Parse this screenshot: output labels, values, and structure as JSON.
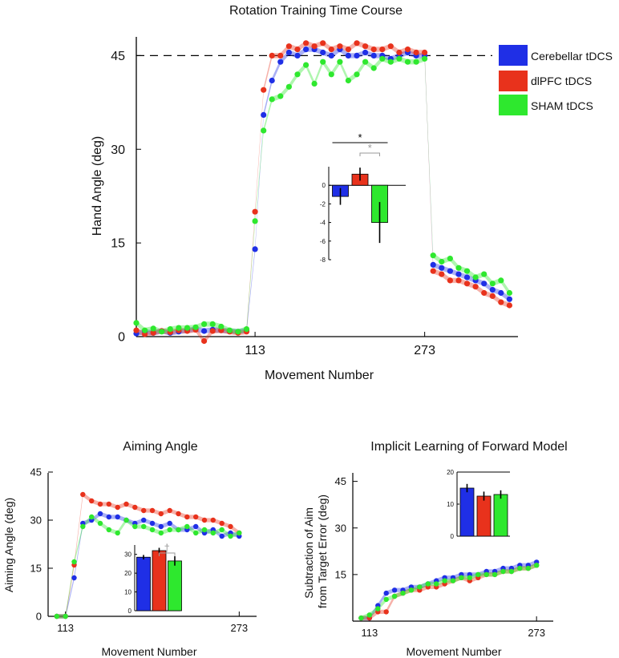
{
  "colors": {
    "cerebellar": "#1f2fe6",
    "dlpfc": "#e8321c",
    "sham": "#2ee82e",
    "axis": "#000000",
    "sig_black": "#000000",
    "sig_gray": "#9a9a9a"
  },
  "chart_data": [
    {
      "id": "main",
      "type": "scatter",
      "title": "Rotation Training Time Course",
      "xlabel": "Movement Number",
      "ylabel": "Hand Angle (deg)",
      "xticks": [
        113,
        273
      ],
      "yticks": [
        0,
        15,
        30,
        45
      ],
      "ytick_labels": [
        "0",
        "15",
        "30",
        "45"
      ],
      "xlim": [
        1,
        361
      ],
      "ylim": [
        0,
        48
      ],
      "reference_line": 45,
      "legend": [
        "Cerebellar tDCS",
        "dlPFC tDCS",
        "SHAM tDCS"
      ],
      "series": [
        {
          "name": "Cerebellar tDCS",
          "key": "cerebellar",
          "x": [
            1,
            9,
            17,
            25,
            33,
            41,
            49,
            57,
            65,
            73,
            81,
            89,
            97,
            105,
            113,
            121,
            129,
            137,
            145,
            153,
            161,
            169,
            177,
            185,
            193,
            201,
            209,
            217,
            225,
            233,
            241,
            249,
            257,
            265,
            273,
            281,
            289,
            297,
            305,
            313,
            321,
            329,
            337,
            345,
            353
          ],
          "y": [
            0.5,
            0.8,
            0.6,
            0.9,
            0.6,
            0.8,
            1.0,
            1.2,
            0.9,
            1.1,
            1.0,
            0.9,
            0.8,
            1.0,
            14.0,
            35.5,
            41.0,
            44.0,
            45.5,
            45.0,
            46.0,
            46.0,
            45.5,
            45.0,
            46.0,
            45.0,
            45.0,
            45.5,
            45.0,
            45.0,
            44.5,
            45.0,
            45.5,
            45.0,
            45.0,
            11.5,
            11.0,
            10.5,
            10.0,
            9.5,
            9.0,
            8.5,
            7.5,
            7.0,
            6.0
          ]
        },
        {
          "name": "dlPFC tDCS",
          "key": "dlpfc",
          "x": [
            1,
            9,
            17,
            25,
            33,
            41,
            49,
            57,
            65,
            73,
            81,
            89,
            97,
            105,
            113,
            121,
            129,
            137,
            145,
            153,
            161,
            169,
            177,
            185,
            193,
            201,
            209,
            217,
            225,
            233,
            241,
            249,
            257,
            265,
            273,
            281,
            289,
            297,
            305,
            313,
            321,
            329,
            337,
            345,
            353
          ],
          "y": [
            1.0,
            0.4,
            0.6,
            0.9,
            0.7,
            1.0,
            0.9,
            1.1,
            -0.7,
            0.9,
            1.0,
            0.8,
            0.6,
            0.8,
            20.0,
            39.5,
            45.0,
            45.0,
            46.5,
            46.0,
            47.0,
            46.5,
            47.0,
            46.0,
            46.5,
            46.0,
            47.0,
            46.5,
            46.0,
            46.0,
            46.5,
            45.5,
            46.0,
            45.5,
            45.5,
            10.5,
            10.0,
            9.0,
            9.0,
            8.5,
            8.0,
            7.0,
            6.5,
            5.5,
            5.0
          ]
        },
        {
          "name": "SHAM tDCS",
          "key": "sham",
          "x": [
            1,
            9,
            17,
            25,
            33,
            41,
            49,
            57,
            65,
            73,
            81,
            89,
            97,
            105,
            113,
            121,
            129,
            137,
            145,
            153,
            161,
            169,
            177,
            185,
            193,
            201,
            209,
            217,
            225,
            233,
            241,
            249,
            257,
            265,
            273,
            281,
            289,
            297,
            305,
            313,
            321,
            329,
            337,
            345,
            353
          ],
          "y": [
            2.2,
            1.0,
            1.3,
            0.8,
            1.2,
            1.4,
            1.4,
            1.5,
            2.0,
            2.0,
            1.6,
            1.0,
            0.8,
            1.2,
            18.5,
            33.0,
            38.0,
            38.5,
            40.0,
            42.0,
            43.5,
            40.5,
            44.0,
            42.0,
            44.0,
            41.0,
            42.0,
            44.0,
            43.0,
            44.5,
            44.0,
            44.5,
            44.0,
            44.0,
            44.5,
            13.0,
            12.0,
            12.5,
            11.0,
            10.5,
            9.5,
            10.0,
            8.5,
            9.0,
            7.0
          ]
        }
      ]
    },
    {
      "id": "main_inset",
      "type": "bar",
      "categories": [
        "Cerebellar tDCS",
        "dlPFC tDCS",
        "SHAM tDCS"
      ],
      "keys": [
        "cerebellar",
        "dlpfc",
        "sham"
      ],
      "values": [
        -1.2,
        1.2,
        -4.0
      ],
      "errors": [
        0.9,
        0.7,
        2.2
      ],
      "ylim": [
        -8,
        2
      ],
      "yticks": [
        0,
        -2,
        -4,
        -6,
        -8
      ],
      "ytick_labels": [
        "0",
        "-2",
        "-4",
        "-6",
        "-8"
      ],
      "annotations": [
        {
          "label": "*",
          "from": 0,
          "to": 2,
          "style": "black"
        },
        {
          "label": "*",
          "from": 1,
          "to": 2,
          "style": "gray"
        }
      ]
    },
    {
      "id": "aim",
      "type": "scatter",
      "title": "Aiming Angle",
      "xlabel": "Movement Number",
      "ylabel": "Aiming Angle (deg)",
      "xticks": [
        113,
        273
      ],
      "yticks": [
        0,
        15,
        30,
        45
      ],
      "ytick_labels": [
        "0",
        "15",
        "30",
        "45"
      ],
      "xlim": [
        97,
        289
      ],
      "ylim": [
        0,
        45
      ],
      "series": [
        {
          "name": "Cerebellar tDCS",
          "key": "cerebellar",
          "x": [
            105,
            113,
            121,
            129,
            137,
            145,
            153,
            161,
            169,
            177,
            185,
            193,
            201,
            209,
            217,
            225,
            233,
            241,
            249,
            257,
            265,
            273
          ],
          "y": [
            0,
            0,
            12,
            29,
            30,
            32,
            31,
            31,
            30,
            29,
            30,
            29,
            28,
            29,
            27,
            27,
            28,
            26,
            27,
            25,
            26,
            25
          ]
        },
        {
          "name": "dlPFC tDCS",
          "key": "dlpfc",
          "x": [
            105,
            113,
            121,
            129,
            137,
            145,
            153,
            161,
            169,
            177,
            185,
            193,
            201,
            209,
            217,
            225,
            233,
            241,
            249,
            257,
            265,
            273
          ],
          "y": [
            0,
            0,
            16,
            38,
            36,
            35,
            35,
            34,
            35,
            34,
            33,
            33,
            32,
            33,
            32,
            31,
            31,
            30,
            30,
            29,
            28,
            26
          ]
        },
        {
          "name": "SHAM tDCS",
          "key": "sham",
          "x": [
            105,
            113,
            121,
            129,
            137,
            145,
            153,
            161,
            169,
            177,
            185,
            193,
            201,
            209,
            217,
            225,
            233,
            241,
            249,
            257,
            265,
            273
          ],
          "y": [
            0,
            0,
            17,
            28,
            31,
            29,
            27,
            26,
            30,
            28,
            28,
            27,
            26,
            27,
            27,
            28,
            26,
            27,
            26,
            27,
            25,
            26
          ]
        }
      ]
    },
    {
      "id": "aim_inset",
      "type": "bar",
      "categories": [
        "Cerebellar tDCS",
        "dlPFC tDCS",
        "SHAM tDCS"
      ],
      "keys": [
        "cerebellar",
        "dlpfc",
        "sham"
      ],
      "values": [
        28.5,
        32.0,
        26.5
      ],
      "errors": [
        1.2,
        1.5,
        2.5
      ],
      "ylim": [
        0,
        35
      ],
      "yticks": [
        0,
        10,
        20,
        30
      ],
      "ytick_labels": [
        "0",
        "10",
        "20",
        "30"
      ],
      "annotations": [
        {
          "label": "†",
          "from": 1,
          "to": 2,
          "style": "gray"
        }
      ]
    },
    {
      "id": "impl",
      "type": "scatter",
      "title": "Implicit Learning of Forward Model",
      "xlabel": "Movement Number",
      "ylabel": "Subtraction of Aim from Target Error (deg)",
      "ylabel_lines": [
        "Subtraction of Aim",
        "from Target Error (deg)"
      ],
      "xticks": [
        113,
        273
      ],
      "yticks": [
        15,
        30,
        45
      ],
      "ytick_labels": [
        "15",
        "30",
        "45"
      ],
      "xlim": [
        97,
        289
      ],
      "ylim": [
        0,
        48
      ],
      "series": [
        {
          "name": "Cerebellar tDCS",
          "key": "cerebellar",
          "x": [
            105,
            113,
            121,
            129,
            137,
            145,
            153,
            161,
            169,
            177,
            185,
            193,
            201,
            209,
            217,
            225,
            233,
            241,
            249,
            257,
            265,
            273
          ],
          "y": [
            1,
            1,
            5,
            9,
            10,
            10,
            11,
            11,
            12,
            13,
            14,
            14,
            15,
            15,
            15,
            16,
            16,
            17,
            17,
            18,
            18,
            19
          ]
        },
        {
          "name": "dlPFC tDCS",
          "key": "dlpfc",
          "x": [
            105,
            113,
            121,
            129,
            137,
            145,
            153,
            161,
            169,
            177,
            185,
            193,
            201,
            209,
            217,
            225,
            233,
            241,
            249,
            257,
            265,
            273
          ],
          "y": [
            1,
            1,
            3,
            3,
            8,
            9,
            10,
            10,
            11,
            11,
            12,
            13,
            14,
            13,
            14,
            15,
            15,
            16,
            16,
            17,
            17,
            18
          ]
        },
        {
          "name": "SHAM tDCS",
          "key": "sham",
          "x": [
            105,
            113,
            121,
            129,
            137,
            145,
            153,
            161,
            169,
            177,
            185,
            193,
            201,
            209,
            217,
            225,
            233,
            241,
            249,
            257,
            265,
            273
          ],
          "y": [
            1,
            2,
            4,
            7,
            8,
            9,
            10,
            11,
            12,
            12,
            13,
            13,
            14,
            14,
            15,
            15,
            15,
            16,
            16,
            17,
            17,
            18
          ]
        }
      ]
    },
    {
      "id": "impl_inset",
      "type": "bar",
      "categories": [
        "Cerebellar tDCS",
        "dlPFC tDCS",
        "SHAM tDCS"
      ],
      "keys": [
        "cerebellar",
        "dlpfc",
        "sham"
      ],
      "values": [
        15.0,
        12.5,
        13.0
      ],
      "errors": [
        1.3,
        1.4,
        1.3
      ],
      "ylim": [
        0,
        20
      ],
      "yticks": [
        0,
        10,
        20
      ],
      "ytick_labels": [
        "0",
        "10",
        "20"
      ],
      "annotations": []
    }
  ]
}
